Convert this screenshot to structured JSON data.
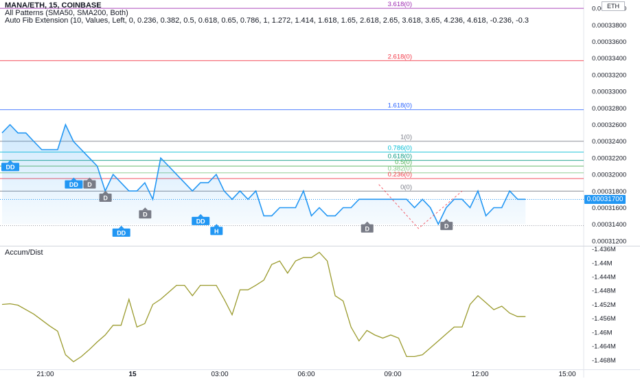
{
  "header": {
    "symbol_line": "MANA/ETH, 15, COINBASE",
    "indicator_1": "All Patterns (SMA50, SMA200, Both)",
    "indicator_2": "Auto Fib Extension (10, Values, Left, 0, 0.236, 0.382, 0.5, 0.618, 0.65, 0.786, 1, 1.272, 1.414, 1.618, 1.65, 2.618, 2.65, 3.618, 3.65, 4.236, 4.618, -0.236, -0.3"
  },
  "currency_badge": "ETH",
  "last_price_label": "0.00031700",
  "colors": {
    "price_line": "#2196f3",
    "accum_line": "#9a9a2c",
    "fib_3618": "#9c27b0",
    "fib_2618": "#f23645",
    "fib_1618": "#2962ff",
    "fib_1": "#787b86",
    "fib_0786": "#00bcd4",
    "fib_0618": "#089981",
    "fib_05": "#4caf50",
    "fib_0382": "#81c784",
    "fib_0236": "#f23645",
    "fib_0": "#787b86",
    "pattern_blue": "#2196f3",
    "pattern_gray": "#787b86"
  },
  "chart_data": [
    {
      "type": "area",
      "title": "MANA/ETH, 15, COINBASE",
      "x_ticks": [
        "21:00",
        "15",
        "03:00",
        "06:00",
        "09:00",
        "12:00",
        "15:00"
      ],
      "y_ticks": [
        "0.00031200",
        "0.00031400",
        "0.00031600",
        "0.00031800",
        "0.00032000",
        "0.00032200",
        "0.00032400",
        "0.00032600",
        "0.00032800",
        "0.00033000",
        "0.00033200",
        "0.00033400",
        "0.00033600",
        "0.00033800",
        "0.00034000"
      ],
      "ylim": [
        0.0003115,
        0.000341
      ],
      "series": [
        {
          "values": [
            0.000325,
            0.00032599,
            0.00032499,
            0.00032499,
            0.00032398,
            0.00032299,
            0.00032299,
            0.00032299,
            0.00032599,
            0.00032398,
            0.00032299,
            0.00032199,
            0.000321,
            0.00031801,
            0.00032,
            0.000319,
            0.00031801,
            0.00031801,
            0.000319,
            0.00031701,
            0.00032199,
            0.000321,
            0.00032,
            0.000319,
            0.00031801,
            0.000319,
            0.000319,
            0.00032,
            0.00031801,
            0.00031701,
            0.00031801,
            0.00031701,
            0.00031801,
            0.00031502,
            0.00031502,
            0.000316,
            0.000316,
            0.000316,
            0.00031801,
            0.00031502,
            0.000316,
            0.00031502,
            0.00031502,
            0.000316,
            0.000316,
            0.00031701,
            0.00031701,
            0.00031701,
            0.00031701,
            0.00031701,
            0.00031701,
            0.00031701,
            0.000316,
            0.00031701,
            0.000316,
            0.00031401,
            0.000316,
            0.00031701,
            0.00031701,
            0.000316,
            0.00031801,
            0.00031502,
            0.000316,
            0.000316,
            0.00031801,
            0.00031701,
            0.00031701
          ]
        }
      ],
      "fib_levels": [
        {
          "label": "3.618(0)",
          "value": 0.00034,
          "color": "#9c27b0"
        },
        {
          "label": "2.618(0)",
          "value": 0.0003337,
          "color": "#f23645"
        },
        {
          "label": "1.618(0)",
          "value": 0.0003278,
          "color": "#2962ff"
        },
        {
          "label": "1(0)",
          "value": 0.000324,
          "color": "#787b86"
        },
        {
          "label": "0.786(0)",
          "value": 0.0003227,
          "color": "#00bcd4"
        },
        {
          "label": "0.618(0)",
          "value": 0.0003217,
          "color": "#089981"
        },
        {
          "label": "0.5(0)",
          "value": 0.000321,
          "color": "#4caf50"
        },
        {
          "label": "0.382(0)",
          "value": 0.0003202,
          "color": "#81c784"
        },
        {
          "label": "0.236(0)",
          "value": 0.0003195,
          "color": "#f23645"
        },
        {
          "label": "0(0)",
          "value": 0.000318,
          "color": "#787b86"
        }
      ],
      "patterns": [
        {
          "label": "DD",
          "index": 0,
          "value": 0.0003209,
          "color": "#2196f3"
        },
        {
          "label": "DD",
          "index": 8,
          "value": 0.0003188,
          "color": "#2196f3"
        },
        {
          "label": "D",
          "index": 10,
          "value": 0.0003188,
          "color": "#787b86"
        },
        {
          "label": "D",
          "index": 12,
          "value": 0.0003172,
          "color": "#787b86"
        },
        {
          "label": "DD",
          "index": 14,
          "value": 0.000313,
          "color": "#2196f3"
        },
        {
          "label": "D",
          "index": 17,
          "value": 0.0003152,
          "color": "#787b86"
        },
        {
          "label": "DD",
          "index": 24,
          "value": 0.0003144,
          "color": "#2196f3"
        },
        {
          "label": "H",
          "index": 26,
          "value": 0.0003132,
          "color": "#2196f3"
        },
        {
          "label": "D",
          "index": 45,
          "value": 0.0003135,
          "color": "#787b86"
        },
        {
          "label": "D",
          "index": 55,
          "value": 0.0003138,
          "color": "#787b86"
        }
      ]
    },
    {
      "type": "line",
      "title": "Accum/Dist",
      "y_ticks": [
        "-1.436M",
        "-1.44M",
        "-1.444M",
        "-1.448M",
        "-1.452M",
        "-1.456M",
        "-1.46M",
        "-1.464M",
        "-1.468M"
      ],
      "ylim": [
        -1.4695,
        -1.4355
      ],
      "series": [
        {
          "values": [
            -1.452,
            -1.4518,
            -1.4522,
            -1.4535,
            -1.4548,
            -1.4565,
            -1.4582,
            -1.4597,
            -1.4665,
            -1.4685,
            -1.467,
            -1.465,
            -1.4628,
            -1.4608,
            -1.458,
            -1.458,
            -1.4505,
            -1.4585,
            -1.4575,
            -1.452,
            -1.4505,
            -1.4485,
            -1.4465,
            -1.4465,
            -1.4495,
            -1.4465,
            -1.4465,
            -1.4465,
            -1.4505,
            -1.455,
            -1.4478,
            -1.4478,
            -1.4465,
            -1.445,
            -1.4405,
            -1.4395,
            -1.443,
            -1.4395,
            -1.4385,
            -1.4385,
            -1.437,
            -1.4395,
            -1.4495,
            -1.451,
            -1.4585,
            -1.4625,
            -1.4595,
            -1.4608,
            -1.4617,
            -1.4608,
            -1.4617,
            -1.467,
            -1.467,
            -1.4665,
            -1.4645,
            -1.4625,
            -1.4605,
            -1.4585,
            -1.4585,
            -1.452,
            -1.4495,
            -1.4515,
            -1.4535,
            -1.4525,
            -1.4545,
            -1.4555,
            -1.4555
          ]
        }
      ]
    }
  ]
}
